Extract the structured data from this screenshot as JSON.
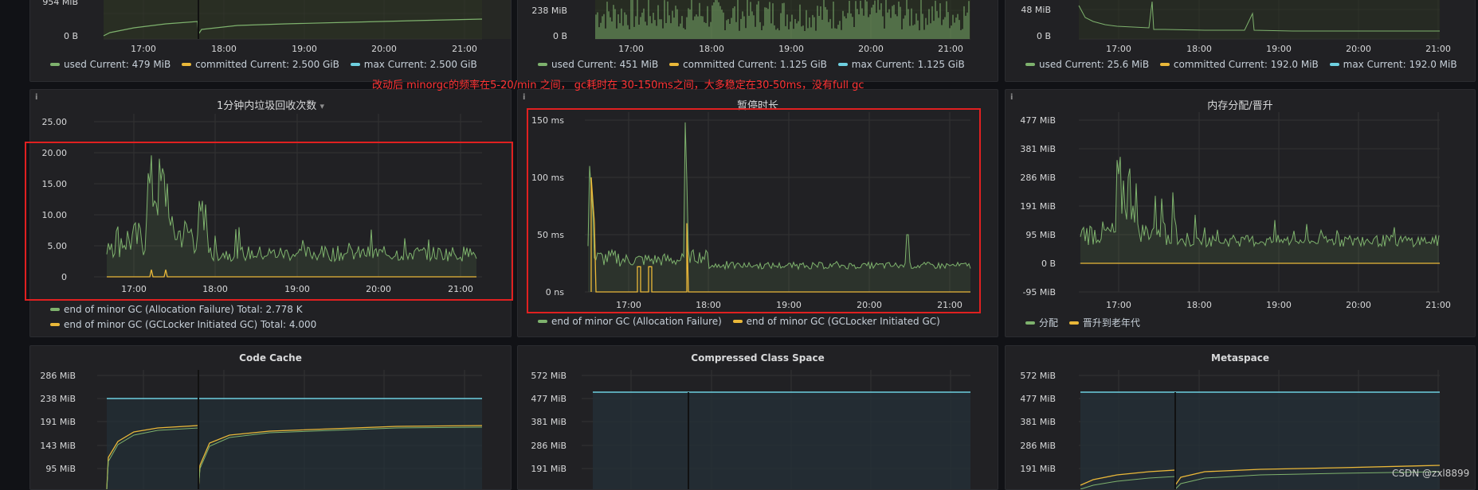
{
  "annotation": "改动后  minorgc的频率在5-20/min 之间， gc耗时在 30-150ms之间，大多稳定在30-50ms，没有full gc",
  "watermark": "CSDN @zxl8899",
  "colors": {
    "green": "#7eb26d",
    "yellow": "#eab839",
    "cyan": "#6ed0e0",
    "red": "#e02020"
  },
  "top_row": [
    {
      "yticks": [
        "954 MiB",
        "0 B"
      ],
      "xticks": [
        "17:00",
        "18:00",
        "19:00",
        "20:00",
        "21:00"
      ],
      "legend": [
        {
          "label": "used  Current: 479 MiB",
          "color": "green"
        },
        {
          "label": "committed  Current: 2.500 GiB",
          "color": "yellow"
        },
        {
          "label": "max  Current: 2.500 GiB",
          "color": "cyan"
        }
      ]
    },
    {
      "yticks": [
        "238 MiB",
        "0 B"
      ],
      "xticks": [
        "17:00",
        "18:00",
        "19:00",
        "20:00",
        "21:00"
      ],
      "legend": [
        {
          "label": "used  Current: 451 MiB",
          "color": "green"
        },
        {
          "label": "committed  Current: 1.125 GiB",
          "color": "yellow"
        },
        {
          "label": "max  Current: 1.125 GiB",
          "color": "cyan"
        }
      ]
    },
    {
      "yticks": [
        "48 MiB",
        "0 B"
      ],
      "xticks": [
        "17:00",
        "18:00",
        "19:00",
        "20:00",
        "21:00"
      ],
      "legend": [
        {
          "label": "used  Current: 25.6 MiB",
          "color": "green"
        },
        {
          "label": "committed  Current: 192.0 MiB",
          "color": "yellow"
        },
        {
          "label": "max  Current: 192.0 MiB",
          "color": "cyan"
        }
      ]
    }
  ],
  "mid_row": [
    {
      "title": "1分钟内垃圾回收次数",
      "dropdown": "▾",
      "yticks": [
        "25.00",
        "20.00",
        "15.00",
        "10.00",
        "5.00",
        "0"
      ],
      "xticks": [
        "17:00",
        "18:00",
        "19:00",
        "20:00",
        "21:00"
      ],
      "legend": [
        {
          "label": "end of minor GC (Allocation Failure)  Total: 2.778 K",
          "color": "green"
        },
        {
          "label": "end of minor GC (GCLocker Initiated GC)  Total: 4.000",
          "color": "yellow"
        }
      ]
    },
    {
      "title": "暂停时长",
      "yticks": [
        "150 ms",
        "100 ms",
        "50 ms",
        "0 ns"
      ],
      "xticks": [
        "17:00",
        "18:00",
        "19:00",
        "20:00",
        "21:00"
      ],
      "legend": [
        {
          "label": "end of minor GC (Allocation Failure)",
          "color": "green"
        },
        {
          "label": "end of minor GC (GCLocker Initiated GC)",
          "color": "yellow"
        }
      ]
    },
    {
      "title": "内存分配/晋升",
      "yticks": [
        "477 MiB",
        "381 MiB",
        "286 MiB",
        "191 MiB",
        "95 MiB",
        "0 B",
        "-95 MiB"
      ],
      "xticks": [
        "17:00",
        "18:00",
        "19:00",
        "20:00",
        "21:00"
      ],
      "legend": [
        {
          "label": "分配",
          "color": "green"
        },
        {
          "label": "晋升到老年代",
          "color": "yellow"
        }
      ]
    }
  ],
  "bottom_row": [
    {
      "title": "Code Cache",
      "yticks": [
        "286 MiB",
        "238 MiB",
        "191 MiB",
        "143 MiB",
        "95 MiB"
      ]
    },
    {
      "title": "Compressed Class Space",
      "yticks": [
        "572 MiB",
        "477 MiB",
        "381 MiB",
        "286 MiB",
        "191 MiB"
      ]
    },
    {
      "title": "Metaspace",
      "yticks": [
        "572 MiB",
        "477 MiB",
        "381 MiB",
        "286 MiB",
        "191 MiB"
      ]
    }
  ]
}
